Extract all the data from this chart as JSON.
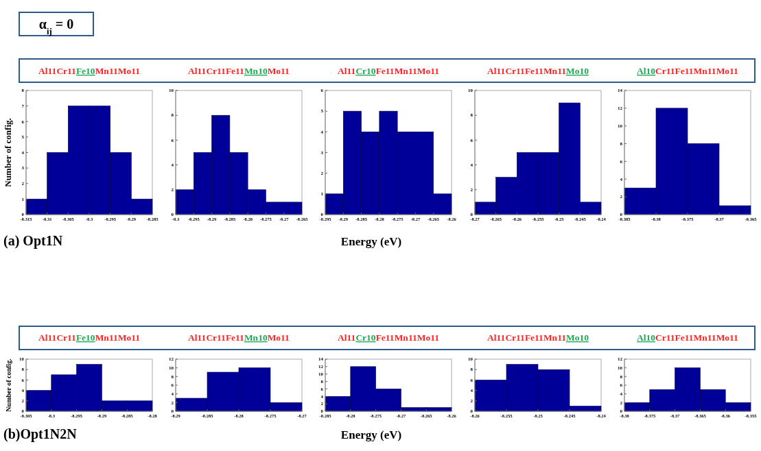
{
  "chart_data": [
    {
      "type": "histogram",
      "title": "Al11Cr11Fe10Mn11Mo11",
      "ylabel": "Number of config.",
      "color": "#000099",
      "bins": [
        -8.315,
        -8.31,
        -8.305,
        -8.3,
        -8.295,
        -8.29,
        -8.285
      ],
      "values": [
        1,
        4,
        7,
        7,
        4,
        1
      ],
      "xlim": [
        -8.315,
        -8.285
      ],
      "xticks": [
        -8.315,
        -8.31,
        -8.305,
        -8.3,
        -8.295,
        -8.29,
        -8.285
      ],
      "ylim": [
        0,
        8
      ],
      "yticks": [
        0,
        1,
        2,
        3,
        4,
        5,
        6,
        7,
        8
      ],
      "annotations": [
        "α$_{ij}$ = 0",
        "(a) Opt1N"
      ]
    },
    {
      "type": "histogram",
      "title": "Al11Cr11Fe11Mn10Mo11",
      "color": "#000099",
      "bins": [
        -8.3,
        -8.295,
        -8.29,
        -8.285,
        -8.28,
        -8.275,
        -8.27,
        -8.265
      ],
      "values": [
        2,
        5,
        8,
        5,
        2,
        1,
        1
      ],
      "xlim": [
        -8.3,
        -8.265
      ],
      "xticks": [
        -8.3,
        -8.295,
        -8.29,
        -8.285,
        -8.28,
        -8.275,
        -8.27,
        -8.265
      ],
      "ylim": [
        0,
        10
      ],
      "yticks": [
        0,
        2,
        4,
        6,
        8,
        10
      ]
    },
    {
      "type": "histogram",
      "title": "Al11Cr10Fe11Mn11Mo11",
      "xlabel": "Energy (eV)",
      "color": "#000099",
      "bins": [
        -8.295,
        -8.29,
        -8.285,
        -8.28,
        -8.275,
        -8.27,
        -8.265,
        -8.26
      ],
      "values": [
        1,
        5,
        4,
        5,
        4,
        4,
        1
      ],
      "xlim": [
        -8.295,
        -8.26
      ],
      "xticks": [
        -8.295,
        -8.29,
        -8.285,
        -8.28,
        -8.275,
        -8.27,
        -8.265,
        -8.26
      ],
      "ylim": [
        0,
        6
      ],
      "yticks": [
        0,
        1,
        2,
        3,
        4,
        5,
        6
      ]
    },
    {
      "type": "histogram",
      "title": "Al11Cr11Fe11Mn11Mo10",
      "color": "#000099",
      "bins": [
        -8.27,
        -8.265,
        -8.26,
        -8.255,
        -8.25,
        -8.245,
        -8.24
      ],
      "values": [
        1,
        3,
        5,
        5,
        9,
        1
      ],
      "xlim": [
        -8.27,
        -8.24
      ],
      "xticks": [
        -8.27,
        -8.265,
        -8.26,
        -8.255,
        -8.25,
        -8.245,
        -8.24
      ],
      "ylim": [
        0,
        10
      ],
      "yticks": [
        0,
        2,
        4,
        6,
        8,
        10
      ]
    },
    {
      "type": "histogram",
      "title": "Al10Cr11Fe11Mn11Mo11",
      "color": "#000099",
      "bins": [
        -8.385,
        -8.38,
        -8.375,
        -8.37,
        -8.365
      ],
      "values": [
        3,
        12,
        8,
        1
      ],
      "xlim": [
        -8.385,
        -8.365
      ],
      "xticks": [
        -8.385,
        -8.38,
        -8.375,
        -8.37,
        -8.365
      ],
      "ylim": [
        0,
        14
      ],
      "yticks": [
        0,
        2,
        4,
        6,
        8,
        10,
        12,
        14
      ]
    },
    {
      "type": "histogram",
      "title": "Al11Cr11Fe10Mn11Mo11",
      "ylabel": "Number of config.",
      "color": "#000099",
      "bins": [
        -8.305,
        -8.3,
        -8.295,
        -8.29,
        -8.285,
        -8.28
      ],
      "values": [
        4,
        7,
        9,
        2,
        2
      ],
      "xlim": [
        -8.305,
        -8.28
      ],
      "xticks": [
        -8.305,
        -8.3,
        -8.295,
        -8.29,
        -8.285,
        -8.28
      ],
      "ylim": [
        0,
        10
      ],
      "yticks": [
        0,
        2,
        4,
        6,
        8,
        10
      ],
      "annotations": [
        "(b)Opt1N2N"
      ]
    },
    {
      "type": "histogram",
      "title": "Al11Cr11Fe11Mn10Mo11",
      "color": "#000099",
      "bins": [
        -8.29,
        -8.285,
        -8.28,
        -8.275,
        -8.27
      ],
      "values": [
        3,
        9,
        10,
        2
      ],
      "xlim": [
        -8.29,
        -8.27
      ],
      "xticks": [
        -8.29,
        -8.285,
        -8.28,
        -8.275,
        -8.27
      ],
      "ylim": [
        0,
        12
      ],
      "yticks": [
        0,
        2,
        4,
        6,
        8,
        10,
        12
      ]
    },
    {
      "type": "histogram",
      "title": "Al11Cr10Fe11Mn11Mo11",
      "xlabel": "Energy (eV)",
      "color": "#000099",
      "bins": [
        -8.285,
        -8.28,
        -8.275,
        -8.27,
        -8.265,
        -8.26
      ],
      "values": [
        4,
        12,
        6,
        1,
        1
      ],
      "xlim": [
        -8.285,
        -8.26
      ],
      "xticks": [
        -8.285,
        -8.28,
        -8.275,
        -8.27,
        -8.265,
        -8.26
      ],
      "ylim": [
        0,
        14
      ],
      "yticks": [
        0,
        2,
        4,
        6,
        8,
        10,
        12,
        14
      ]
    },
    {
      "type": "histogram",
      "title": "Al11Cr11Fe11Mn11Mo10",
      "color": "#000099",
      "bins": [
        -8.26,
        -8.255,
        -8.25,
        -8.245,
        -8.24
      ],
      "values": [
        6,
        9,
        8,
        1
      ],
      "xlim": [
        -8.26,
        -8.24
      ],
      "xticks": [
        -8.26,
        -8.255,
        -8.25,
        -8.245,
        -8.24
      ],
      "ylim": [
        0,
        10
      ],
      "yticks": [
        0,
        2,
        4,
        6,
        8,
        10
      ]
    },
    {
      "type": "histogram",
      "title": "Al10Cr11Fe11Mn11Mo11",
      "color": "#000099",
      "bins": [
        -8.38,
        -8.375,
        -8.37,
        -8.365,
        -8.36,
        -8.355
      ],
      "values": [
        2,
        5,
        10,
        5,
        2
      ],
      "xlim": [
        -8.38,
        -8.355
      ],
      "xticks": [
        -8.38,
        -8.375,
        -8.37,
        -8.365,
        -8.36,
        -8.355
      ],
      "ylim": [
        0,
        12
      ],
      "yticks": [
        0,
        2,
        4,
        6,
        8,
        10,
        12
      ]
    }
  ]
}
